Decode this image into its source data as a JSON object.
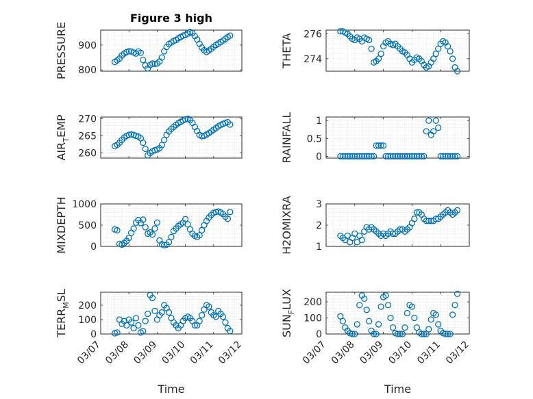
{
  "chart_data": [
    {
      "type": "scatter",
      "title": "Figure 3 high",
      "ylabel": "PRESSURE",
      "ylim": [
        795,
        960
      ],
      "yticks": [
        800,
        900
      ],
      "color": "#0072BD",
      "x": [
        "03/07 12:00",
        "03/07 14:00",
        "03/07 16:00",
        "03/07 18:00",
        "03/07 20:00",
        "03/07 22:00",
        "03/08 00:00",
        "03/08 02:00",
        "03/08 04:00",
        "03/08 06:00",
        "03/08 08:00",
        "03/08 10:00",
        "03/08 12:00",
        "03/08 14:00",
        "03/08 16:00",
        "03/08 18:00",
        "03/08 20:00",
        "03/08 22:00",
        "03/09 00:00",
        "03/09 02:00",
        "03/09 04:00",
        "03/09 06:00",
        "03/09 08:00",
        "03/09 10:00",
        "03/09 12:00",
        "03/09 14:00",
        "03/09 16:00",
        "03/09 18:00",
        "03/09 20:00",
        "03/09 22:00",
        "03/10 00:00",
        "03/10 02:00",
        "03/10 04:00",
        "03/10 06:00",
        "03/10 08:00",
        "03/10 10:00",
        "03/10 12:00",
        "03/10 14:00",
        "03/10 16:00",
        "03/10 18:00",
        "03/10 20:00",
        "03/10 22:00",
        "03/11 00:00",
        "03/11 02:00",
        "03/11 04:00",
        "03/11 06:00",
        "03/11 08:00",
        "03/11 10:00",
        "03/11 12:00",
        "03/11 14:00"
      ],
      "y": [
        832,
        838,
        846,
        858,
        866,
        872,
        875,
        874,
        870,
        866,
        874,
        869,
        840,
        818,
        806,
        820,
        826,
        824,
        826,
        834,
        850,
        875,
        892,
        904,
        910,
        916,
        920,
        927,
        932,
        938,
        941,
        946,
        952,
        948,
        936,
        922,
        905,
        890,
        879,
        872,
        878,
        885,
        893,
        900,
        906,
        912,
        918,
        925,
        932,
        938
      ]
    },
    {
      "type": "scatter",
      "ylabel": "THETA",
      "ylim": [
        273.0,
        276.3
      ],
      "yticks": [
        274,
        276
      ],
      "color": "#0072BD",
      "x": [
        "03/07 12:00",
        "03/07 14:00",
        "03/07 16:00",
        "03/07 18:00",
        "03/07 20:00",
        "03/07 22:00",
        "03/08 00:00",
        "03/08 02:00",
        "03/08 04:00",
        "03/08 06:00",
        "03/08 08:00",
        "03/08 10:00",
        "03/08 12:00",
        "03/08 14:00",
        "03/08 16:00",
        "03/08 18:00",
        "03/08 20:00",
        "03/08 22:00",
        "03/09 00:00",
        "03/09 02:00",
        "03/09 04:00",
        "03/09 06:00",
        "03/09 08:00",
        "03/09 10:00",
        "03/09 12:00",
        "03/09 14:00",
        "03/09 16:00",
        "03/09 18:00",
        "03/09 20:00",
        "03/09 22:00",
        "03/10 00:00",
        "03/10 02:00",
        "03/10 04:00",
        "03/10 06:00",
        "03/10 08:00",
        "03/10 10:00",
        "03/10 12:00",
        "03/10 14:00",
        "03/10 16:00",
        "03/10 18:00",
        "03/10 20:00",
        "03/10 22:00",
        "03/11 00:00",
        "03/11 02:00",
        "03/11 04:00",
        "03/11 06:00",
        "03/11 08:00",
        "03/11 10:00",
        "03/11 12:00",
        "03/11 14:00"
      ],
      "y": [
        276.2,
        276.2,
        276.1,
        276.0,
        275.8,
        275.6,
        275.5,
        275.7,
        275.6,
        275.4,
        275.7,
        275.6,
        275.5,
        274.8,
        273.7,
        273.8,
        274.0,
        274.4,
        275.0,
        275.3,
        275.4,
        275.2,
        275.1,
        275.2,
        275.0,
        274.8,
        274.6,
        274.5,
        274.3,
        274.0,
        273.7,
        273.9,
        274.1,
        274.0,
        273.8,
        273.5,
        273.3,
        273.4,
        273.7,
        274.0,
        274.4,
        274.8,
        275.2,
        275.4,
        275.3,
        275.0,
        274.6,
        274.0,
        273.3,
        273.0
      ]
    },
    {
      "type": "scatter",
      "ylabel": "AIR_TEMP",
      "ylim": [
        258.5,
        270.5
      ],
      "yticks": [
        260,
        265,
        270
      ],
      "color": "#0072BD",
      "x": [
        "03/07 12:00",
        "03/07 14:00",
        "03/07 16:00",
        "03/07 18:00",
        "03/07 20:00",
        "03/07 22:00",
        "03/08 00:00",
        "03/08 02:00",
        "03/08 04:00",
        "03/08 06:00",
        "03/08 08:00",
        "03/08 10:00",
        "03/08 12:00",
        "03/08 14:00",
        "03/08 16:00",
        "03/08 18:00",
        "03/08 20:00",
        "03/08 22:00",
        "03/09 00:00",
        "03/09 02:00",
        "03/09 04:00",
        "03/09 06:00",
        "03/09 08:00",
        "03/09 10:00",
        "03/09 12:00",
        "03/09 14:00",
        "03/09 16:00",
        "03/09 18:00",
        "03/09 20:00",
        "03/09 22:00",
        "03/10 00:00",
        "03/10 02:00",
        "03/10 04:00",
        "03/10 06:00",
        "03/10 08:00",
        "03/10 10:00",
        "03/10 12:00",
        "03/10 14:00",
        "03/10 16:00",
        "03/10 18:00",
        "03/10 20:00",
        "03/10 22:00",
        "03/11 00:00",
        "03/11 02:00",
        "03/11 04:00",
        "03/11 06:00",
        "03/11 08:00",
        "03/11 10:00",
        "03/11 12:00",
        "03/11 14:00"
      ],
      "y": [
        262.0,
        262.4,
        263.0,
        263.8,
        264.5,
        265.0,
        265.3,
        265.4,
        265.3,
        265.0,
        264.8,
        264.3,
        263.0,
        261.2,
        259.3,
        260.0,
        260.5,
        260.8,
        261.0,
        261.4,
        262.3,
        263.8,
        265.3,
        266.3,
        267.0,
        267.6,
        268.2,
        268.7,
        269.1,
        269.5,
        269.8,
        270.0,
        269.6,
        268.8,
        267.6,
        266.4,
        265.3,
        264.9,
        265.0,
        265.4,
        265.8,
        266.3,
        266.8,
        267.3,
        267.8,
        268.2,
        268.5,
        268.8,
        269.0,
        268.3
      ]
    },
    {
      "type": "scatter",
      "ylabel": "RAINFALL",
      "ylim": [
        -0.05,
        1.1
      ],
      "yticks": [
        0,
        0.5,
        1
      ],
      "color": "#0072BD",
      "x": [
        "03/07 12:00",
        "03/07 14:00",
        "03/07 16:00",
        "03/07 18:00",
        "03/07 20:00",
        "03/07 22:00",
        "03/08 00:00",
        "03/08 02:00",
        "03/08 04:00",
        "03/08 06:00",
        "03/08 08:00",
        "03/08 10:00",
        "03/08 12:00",
        "03/08 14:00",
        "03/08 16:00",
        "03/08 18:00",
        "03/08 20:00",
        "03/08 22:00",
        "03/09 00:00",
        "03/09 02:00",
        "03/09 04:00",
        "03/09 06:00",
        "03/09 08:00",
        "03/09 10:00",
        "03/09 12:00",
        "03/09 14:00",
        "03/09 16:00",
        "03/09 18:00",
        "03/09 20:00",
        "03/09 22:00",
        "03/10 00:00",
        "03/10 02:00",
        "03/10 04:00",
        "03/10 06:00",
        "03/10 08:00",
        "03/10 10:00",
        "03/10 12:00",
        "03/10 14:00",
        "03/10 16:00",
        "03/10 18:00",
        "03/10 20:00",
        "03/10 22:00",
        "03/11 00:00",
        "03/11 02:00",
        "03/11 04:00",
        "03/11 06:00",
        "03/11 08:00",
        "03/11 10:00",
        "03/11 12:00",
        "03/11 14:00"
      ],
      "y": [
        0,
        0,
        0,
        0,
        0,
        0,
        0,
        0,
        0,
        0,
        0,
        0,
        0,
        0,
        0,
        0.3,
        0.3,
        0.3,
        0.3,
        0,
        0,
        0,
        0,
        0,
        0,
        0,
        0,
        0,
        0,
        0,
        0,
        0,
        0,
        0,
        0,
        0,
        0.7,
        1.0,
        0.6,
        0.7,
        1.0,
        0.8,
        0,
        0,
        0,
        0,
        0,
        0,
        0,
        0
      ]
    },
    {
      "type": "scatter",
      "ylabel": "MIXDEPTH",
      "ylim": [
        0,
        1000
      ],
      "yticks": [
        0,
        500,
        1000
      ],
      "color": "#0072BD",
      "x": [
        "03/07 12:00",
        "03/07 14:00",
        "03/07 16:00",
        "03/07 18:00",
        "03/07 20:00",
        "03/07 22:00",
        "03/08 00:00",
        "03/08 02:00",
        "03/08 04:00",
        "03/08 06:00",
        "03/08 08:00",
        "03/08 10:00",
        "03/08 12:00",
        "03/08 14:00",
        "03/08 16:00",
        "03/08 18:00",
        "03/08 20:00",
        "03/08 22:00",
        "03/09 00:00",
        "03/09 02:00",
        "03/09 04:00",
        "03/09 06:00",
        "03/09 08:00",
        "03/09 10:00",
        "03/09 12:00",
        "03/09 14:00",
        "03/09 16:00",
        "03/09 18:00",
        "03/09 20:00",
        "03/09 22:00",
        "03/10 00:00",
        "03/10 02:00",
        "03/10 04:00",
        "03/10 06:00",
        "03/10 08:00",
        "03/10 10:00",
        "03/10 12:00",
        "03/10 14:00",
        "03/10 16:00",
        "03/10 18:00",
        "03/10 20:00",
        "03/10 22:00",
        "03/11 00:00",
        "03/11 02:00",
        "03/11 04:00",
        "03/11 06:00",
        "03/11 08:00",
        "03/11 10:00",
        "03/11 12:00",
        "03/11 14:00"
      ],
      "y": [
        400,
        380,
        60,
        40,
        80,
        130,
        200,
        320,
        420,
        560,
        620,
        550,
        630,
        450,
        300,
        330,
        280,
        420,
        560,
        140,
        50,
        30,
        40,
        100,
        220,
        360,
        420,
        480,
        520,
        560,
        640,
        520,
        400,
        300,
        250,
        220,
        260,
        380,
        500,
        600,
        680,
        740,
        790,
        810,
        820,
        800,
        760,
        700,
        650,
        810
      ]
    },
    {
      "type": "scatter",
      "ylabel": "H2OMIXRA",
      "ylim": [
        1,
        3
      ],
      "yticks": [
        1,
        2,
        3
      ],
      "color": "#0072BD",
      "x": [
        "03/07 12:00",
        "03/07 14:00",
        "03/07 16:00",
        "03/07 18:00",
        "03/07 20:00",
        "03/07 22:00",
        "03/08 00:00",
        "03/08 02:00",
        "03/08 04:00",
        "03/08 06:00",
        "03/08 08:00",
        "03/08 10:00",
        "03/08 12:00",
        "03/08 14:00",
        "03/08 16:00",
        "03/08 18:00",
        "03/08 20:00",
        "03/08 22:00",
        "03/09 00:00",
        "03/09 02:00",
        "03/09 04:00",
        "03/09 06:00",
        "03/09 08:00",
        "03/09 10:00",
        "03/09 12:00",
        "03/09 14:00",
        "03/09 16:00",
        "03/09 18:00",
        "03/09 20:00",
        "03/09 22:00",
        "03/10 00:00",
        "03/10 02:00",
        "03/10 04:00",
        "03/10 06:00",
        "03/10 08:00",
        "03/10 10:00",
        "03/10 12:00",
        "03/10 14:00",
        "03/10 16:00",
        "03/10 18:00",
        "03/10 20:00",
        "03/10 22:00",
        "03/11 00:00",
        "03/11 02:00",
        "03/11 04:00",
        "03/11 06:00",
        "03/11 08:00",
        "03/11 10:00",
        "03/11 12:00",
        "03/11 14:00"
      ],
      "y": [
        1.5,
        1.4,
        1.3,
        1.5,
        1.2,
        1.4,
        1.6,
        1.2,
        1.5,
        1.3,
        1.7,
        1.9,
        1.8,
        1.9,
        1.8,
        1.7,
        1.6,
        1.5,
        1.6,
        1.5,
        1.6,
        1.7,
        1.6,
        1.6,
        1.7,
        1.8,
        1.8,
        1.7,
        1.8,
        1.9,
        2.1,
        2.3,
        2.6,
        2.6,
        2.5,
        2.3,
        2.2,
        2.2,
        2.2,
        2.2,
        2.3,
        2.3,
        2.4,
        2.5,
        2.6,
        2.7,
        2.6,
        2.5,
        2.6,
        2.7
      ]
    },
    {
      "type": "scatter",
      "ylabel": "TERR_MSL",
      "ylim": [
        0,
        290
      ],
      "yticks": [
        0,
        100,
        200
      ],
      "color": "#0072BD",
      "x": [
        "03/07 12:00",
        "03/07 14:00",
        "03/07 16:00",
        "03/07 18:00",
        "03/07 20:00",
        "03/07 22:00",
        "03/08 00:00",
        "03/08 02:00",
        "03/08 04:00",
        "03/08 06:00",
        "03/08 08:00",
        "03/08 10:00",
        "03/08 12:00",
        "03/08 14:00",
        "03/08 16:00",
        "03/08 18:00",
        "03/08 20:00",
        "03/08 22:00",
        "03/09 00:00",
        "03/09 02:00",
        "03/09 04:00",
        "03/09 06:00",
        "03/09 08:00",
        "03/09 10:00",
        "03/09 12:00",
        "03/09 14:00",
        "03/09 16:00",
        "03/09 18:00",
        "03/09 20:00",
        "03/09 22:00",
        "03/10 00:00",
        "03/10 02:00",
        "03/10 04:00",
        "03/10 06:00",
        "03/10 08:00",
        "03/10 10:00",
        "03/10 12:00",
        "03/10 14:00",
        "03/10 16:00",
        "03/10 18:00",
        "03/10 20:00",
        "03/10 22:00",
        "03/11 00:00",
        "03/11 02:00",
        "03/11 04:00",
        "03/11 06:00",
        "03/11 08:00",
        "03/11 10:00",
        "03/11 12:00",
        "03/11 14:00"
      ],
      "y": [
        5,
        10,
        100,
        70,
        90,
        60,
        100,
        80,
        40,
        110,
        60,
        10,
        20,
        90,
        140,
        270,
        250,
        160,
        100,
        130,
        150,
        200,
        180,
        150,
        110,
        80,
        60,
        40,
        60,
        90,
        110,
        120,
        110,
        90,
        60,
        60,
        90,
        130,
        170,
        200,
        190,
        150,
        130,
        120,
        160,
        140,
        120,
        80,
        40,
        20
      ]
    },
    {
      "type": "scatter",
      "ylabel": "SUN_FLUX",
      "ylim": [
        0,
        260
      ],
      "yticks": [
        0,
        100,
        200
      ],
      "color": "#0072BD",
      "x": [
        "03/07 12:00",
        "03/07 14:00",
        "03/07 16:00",
        "03/07 18:00",
        "03/07 20:00",
        "03/07 22:00",
        "03/08 00:00",
        "03/08 02:00",
        "03/08 04:00",
        "03/08 06:00",
        "03/08 08:00",
        "03/08 10:00",
        "03/08 12:00",
        "03/08 14:00",
        "03/08 16:00",
        "03/08 18:00",
        "03/08 20:00",
        "03/08 22:00",
        "03/09 00:00",
        "03/09 02:00",
        "03/09 04:00",
        "03/09 06:00",
        "03/09 08:00",
        "03/09 10:00",
        "03/09 12:00",
        "03/09 14:00",
        "03/09 16:00",
        "03/09 18:00",
        "03/09 20:00",
        "03/09 22:00",
        "03/10 00:00",
        "03/10 02:00",
        "03/10 04:00",
        "03/10 06:00",
        "03/10 08:00",
        "03/10 10:00",
        "03/10 12:00",
        "03/10 14:00",
        "03/10 16:00",
        "03/10 18:00",
        "03/10 20:00",
        "03/10 22:00",
        "03/11 00:00",
        "03/11 02:00",
        "03/11 04:00",
        "03/11 06:00",
        "03/11 08:00",
        "03/11 10:00",
        "03/11 12:00",
        "03/11 14:00"
      ],
      "y": [
        110,
        80,
        40,
        20,
        5,
        0,
        0,
        60,
        180,
        240,
        220,
        150,
        80,
        20,
        0,
        0,
        60,
        170,
        230,
        240,
        180,
        100,
        40,
        5,
        0,
        0,
        0,
        40,
        130,
        180,
        170,
        100,
        40,
        10,
        0,
        0,
        0,
        30,
        90,
        130,
        120,
        60,
        20,
        5,
        0,
        0,
        0,
        120,
        180,
        250
      ]
    }
  ],
  "shared_x": {
    "label": "Time",
    "ticks": [
      "03/07",
      "03/08",
      "03/09",
      "03/10",
      "03/11",
      "03/12"
    ],
    "range": [
      "03/07 00:00",
      "03/12 00:00"
    ]
  }
}
